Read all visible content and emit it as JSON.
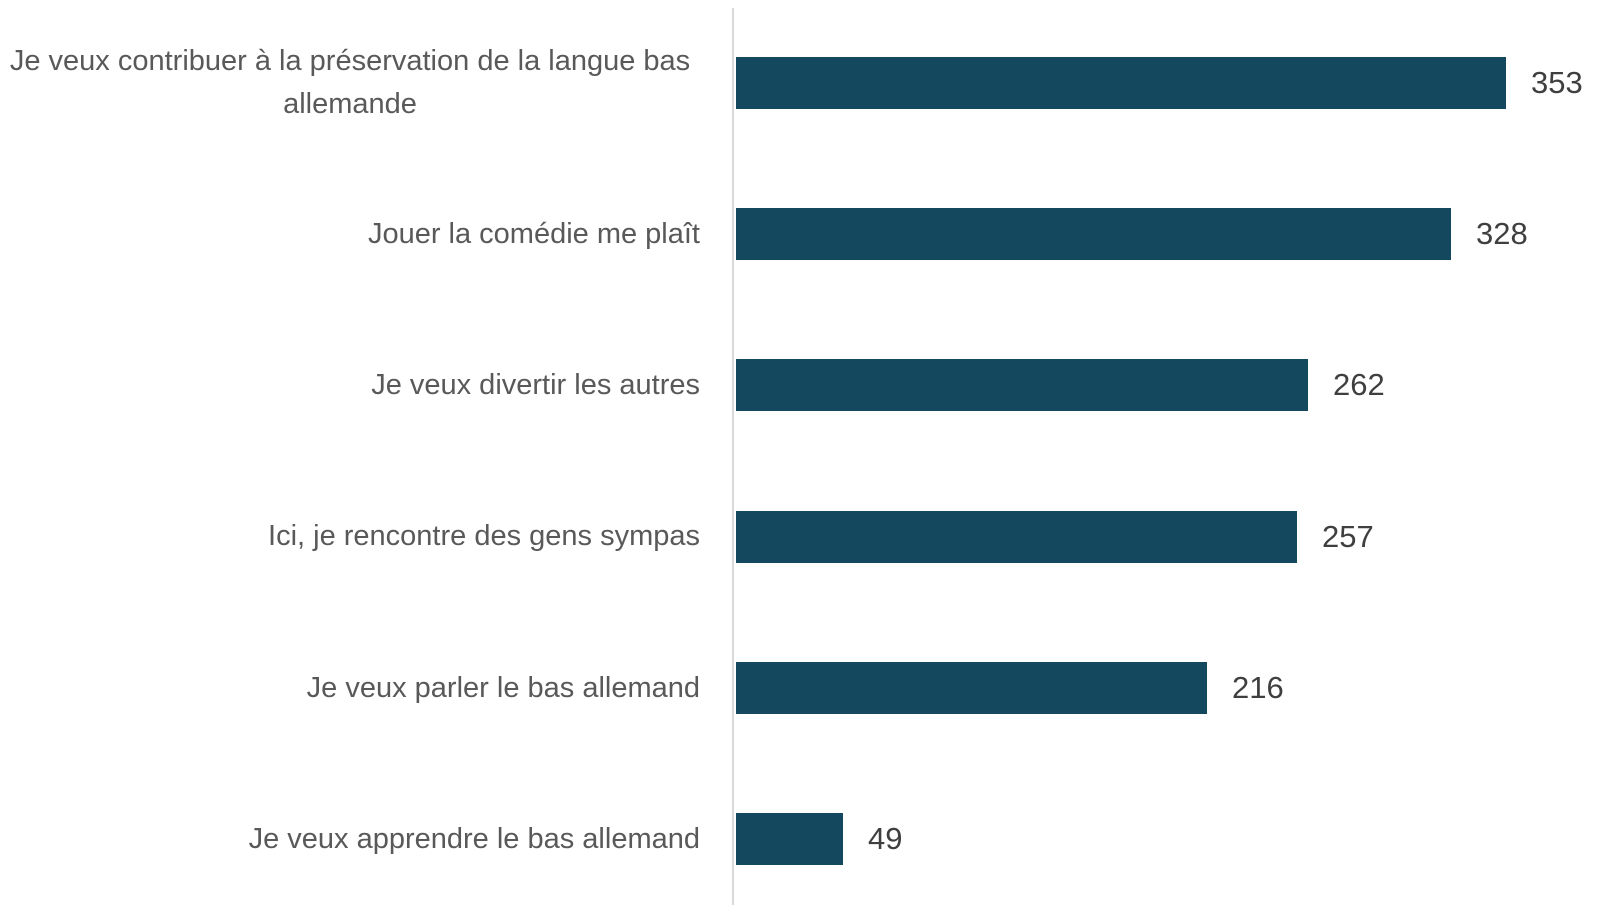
{
  "chart_data": {
    "type": "bar",
    "orientation": "horizontal",
    "title": "",
    "xlabel": "",
    "ylabel": "",
    "categories": [
      "Je veux contribuer à la préservation de la langue bas allemande",
      "Jouer la comédie me plaît",
      "Je veux divertir les autres",
      "Ici, je rencontre des gens sympas",
      "Je veux parler le bas allemand",
      "Je veux apprendre le bas allemand"
    ],
    "values": [
      353,
      328,
      262,
      257,
      216,
      49
    ],
    "xlim": [
      0,
      380
    ],
    "grid": false,
    "legend": false,
    "data_labels": "end-of-bar",
    "colors": {
      "bar": "#14485F",
      "axis_line": "#D9D9D9",
      "category_text": "#595959",
      "value_text": "#3F3F3F",
      "background": "#FFFFFF"
    }
  }
}
